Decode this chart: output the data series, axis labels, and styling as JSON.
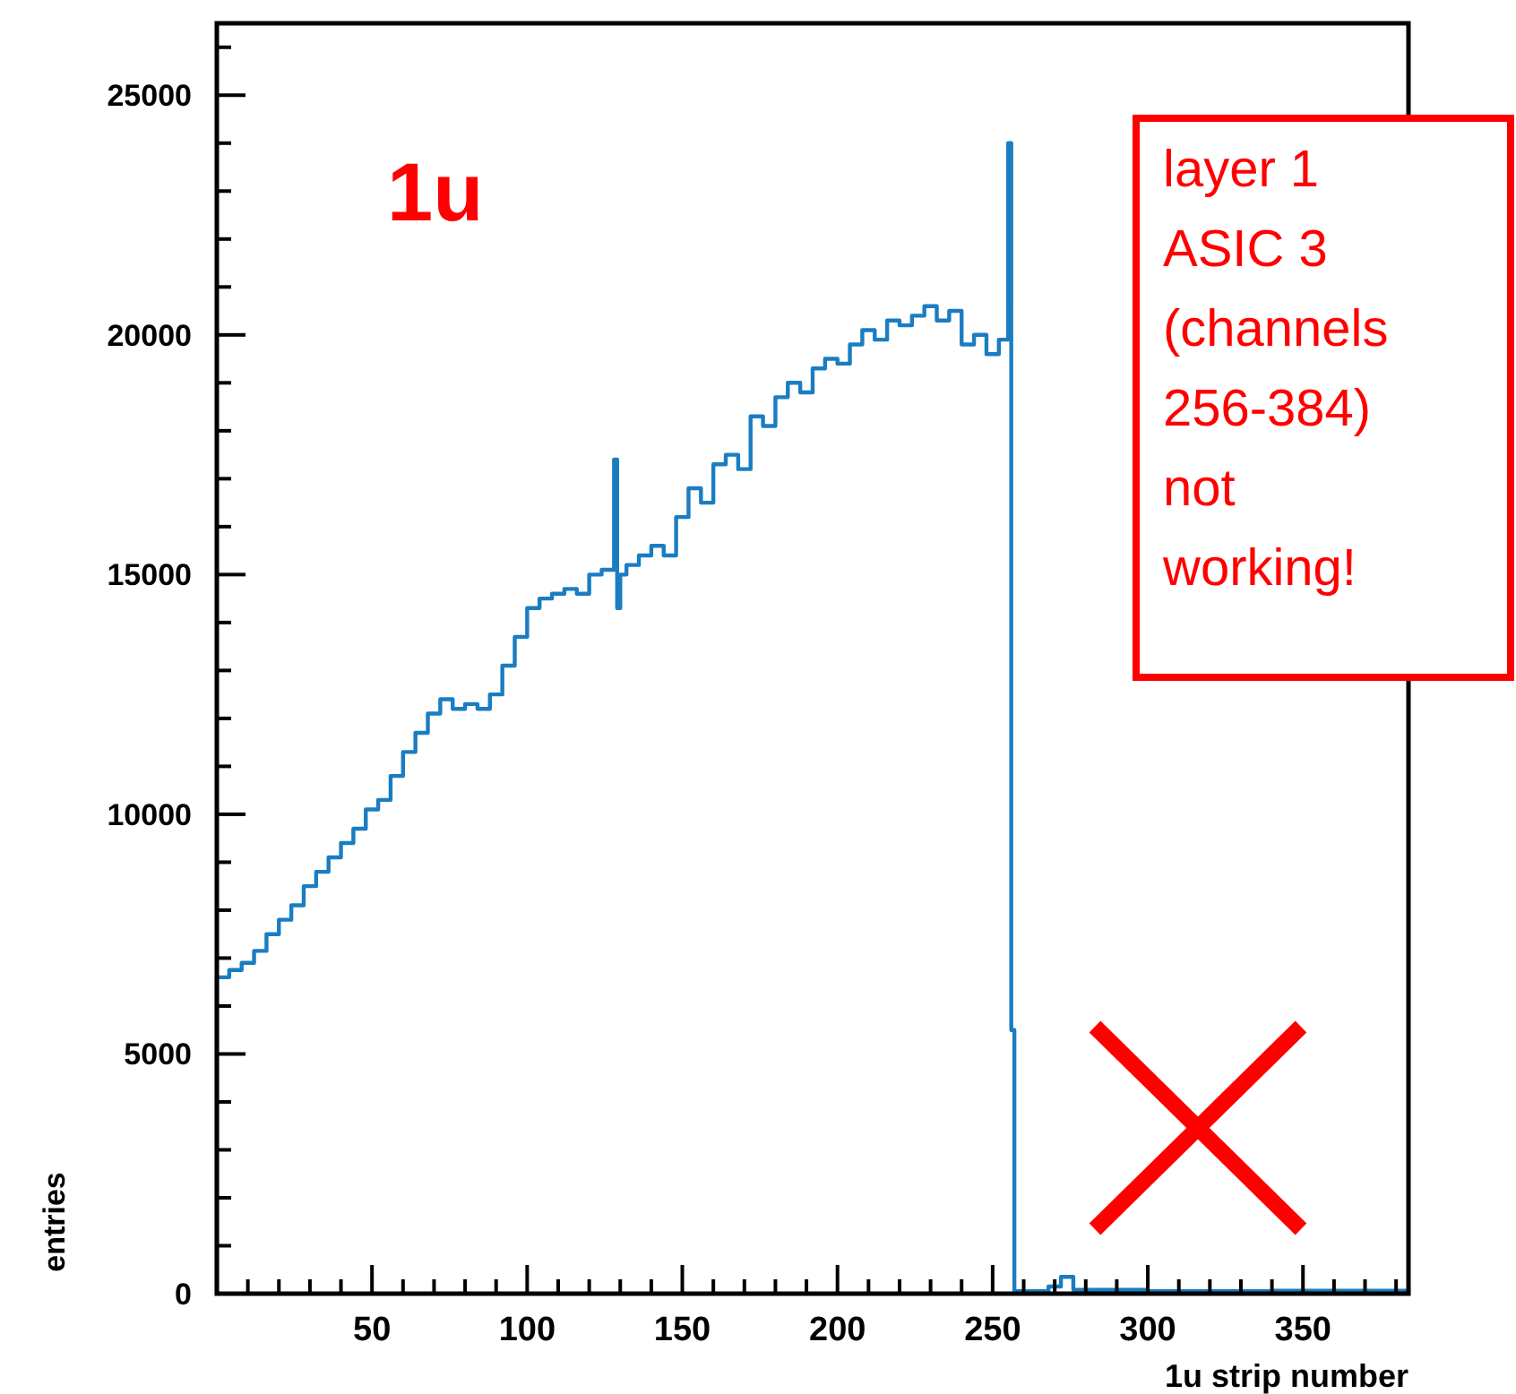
{
  "chart_data": {
    "type": "histogram",
    "xlabel": "1u strip number",
    "ylabel": "entries",
    "annotations": [
      "1u",
      "layer 1\nASIC 3\n(channels\n256-384)\nnot\nworking!"
    ],
    "color": "#1a7dc2",
    "bins": [
      0,
      4,
      8,
      12,
      16,
      20,
      24,
      28,
      32,
      36,
      40,
      44,
      48,
      52,
      56,
      60,
      64,
      68,
      72,
      76,
      80,
      84,
      88,
      92,
      96,
      100,
      104,
      108,
      112,
      116,
      120,
      124,
      128,
      129,
      130,
      132,
      136,
      140,
      144,
      148,
      152,
      156,
      160,
      164,
      168,
      172,
      176,
      180,
      184,
      188,
      192,
      196,
      200,
      204,
      208,
      212,
      216,
      220,
      224,
      228,
      232,
      236,
      240,
      244,
      248,
      252,
      255,
      256,
      257,
      268,
      272,
      276,
      300,
      340,
      384
    ],
    "values": [
      6600,
      6750,
      6900,
      7150,
      7500,
      7800,
      8100,
      8500,
      8800,
      9100,
      9400,
      9700,
      10100,
      10300,
      10800,
      11300,
      11700,
      12100,
      12400,
      12200,
      12300,
      12200,
      12500,
      13100,
      13700,
      14300,
      14500,
      14600,
      14700,
      14600,
      15000,
      15100,
      17400,
      14300,
      15000,
      15200,
      15400,
      15600,
      15400,
      16200,
      16800,
      16500,
      17300,
      17500,
      17200,
      18300,
      18100,
      18700,
      19000,
      18800,
      19300,
      19500,
      19400,
      19800,
      20100,
      19900,
      20300,
      20200,
      20400,
      20600,
      20300,
      20500,
      19800,
      20000,
      19600,
      19900,
      24000,
      5500,
      50,
      150,
      350,
      80,
      50,
      60
    ],
    "xlim": [
      0,
      384
    ],
    "ylim": [
      0,
      26500
    ],
    "xticks": [
      {
        "value": 10,
        "label": null
      },
      {
        "value": 20,
        "label": null
      },
      {
        "value": 30,
        "label": null
      },
      {
        "value": 40,
        "label": null
      },
      50,
      {
        "value": 60,
        "label": null
      },
      {
        "value": 70,
        "label": null
      },
      {
        "value": 80,
        "label": null
      },
      {
        "value": 90,
        "label": null
      },
      100,
      {
        "value": 110,
        "label": null
      },
      {
        "value": 120,
        "label": null
      },
      {
        "value": 130,
        "label": null
      },
      {
        "value": 140,
        "label": null
      },
      150,
      {
        "value": 160,
        "label": null
      },
      {
        "value": 170,
        "label": null
      },
      {
        "value": 180,
        "label": null
      },
      {
        "value": 190,
        "label": null
      },
      200,
      {
        "value": 210,
        "label": null
      },
      {
        "value": 220,
        "label": null
      },
      {
        "value": 230,
        "label": null
      },
      {
        "value": 240,
        "label": null
      },
      250,
      {
        "value": 260,
        "label": null
      },
      {
        "value": 270,
        "label": null
      },
      {
        "value": 280,
        "label": null
      },
      {
        "value": 290,
        "label": null
      },
      300,
      {
        "value": 310,
        "label": null
      },
      {
        "value": 320,
        "label": null
      },
      {
        "value": 330,
        "label": null
      },
      {
        "value": 340,
        "label": null
      },
      350,
      {
        "value": 360,
        "label": null
      },
      {
        "value": 370,
        "label": null
      },
      {
        "value": 380,
        "label": null
      }
    ],
    "yticks": [
      0,
      {
        "value": 1000,
        "label": null
      },
      {
        "value": 2000,
        "label": null
      },
      {
        "value": 3000,
        "label": null
      },
      {
        "value": 4000,
        "label": null
      },
      5000,
      {
        "value": 6000,
        "label": null
      },
      {
        "value": 7000,
        "label": null
      },
      {
        "value": 8000,
        "label": null
      },
      {
        "value": 9000,
        "label": null
      },
      10000,
      {
        "value": 11000,
        "label": null
      },
      {
        "value": 12000,
        "label": null
      },
      {
        "value": 13000,
        "label": null
      },
      {
        "value": 14000,
        "label": null
      },
      15000,
      {
        "value": 16000,
        "label": null
      },
      {
        "value": 17000,
        "label": null
      },
      {
        "value": 18000,
        "label": null
      },
      {
        "value": 19000,
        "label": null
      },
      20000,
      {
        "value": 21000,
        "label": null
      },
      {
        "value": 22000,
        "label": null
      },
      {
        "value": 23000,
        "label": null
      },
      {
        "value": 24000,
        "label": null
      },
      25000,
      {
        "value": 26000,
        "label": null
      }
    ],
    "grid": false
  }
}
